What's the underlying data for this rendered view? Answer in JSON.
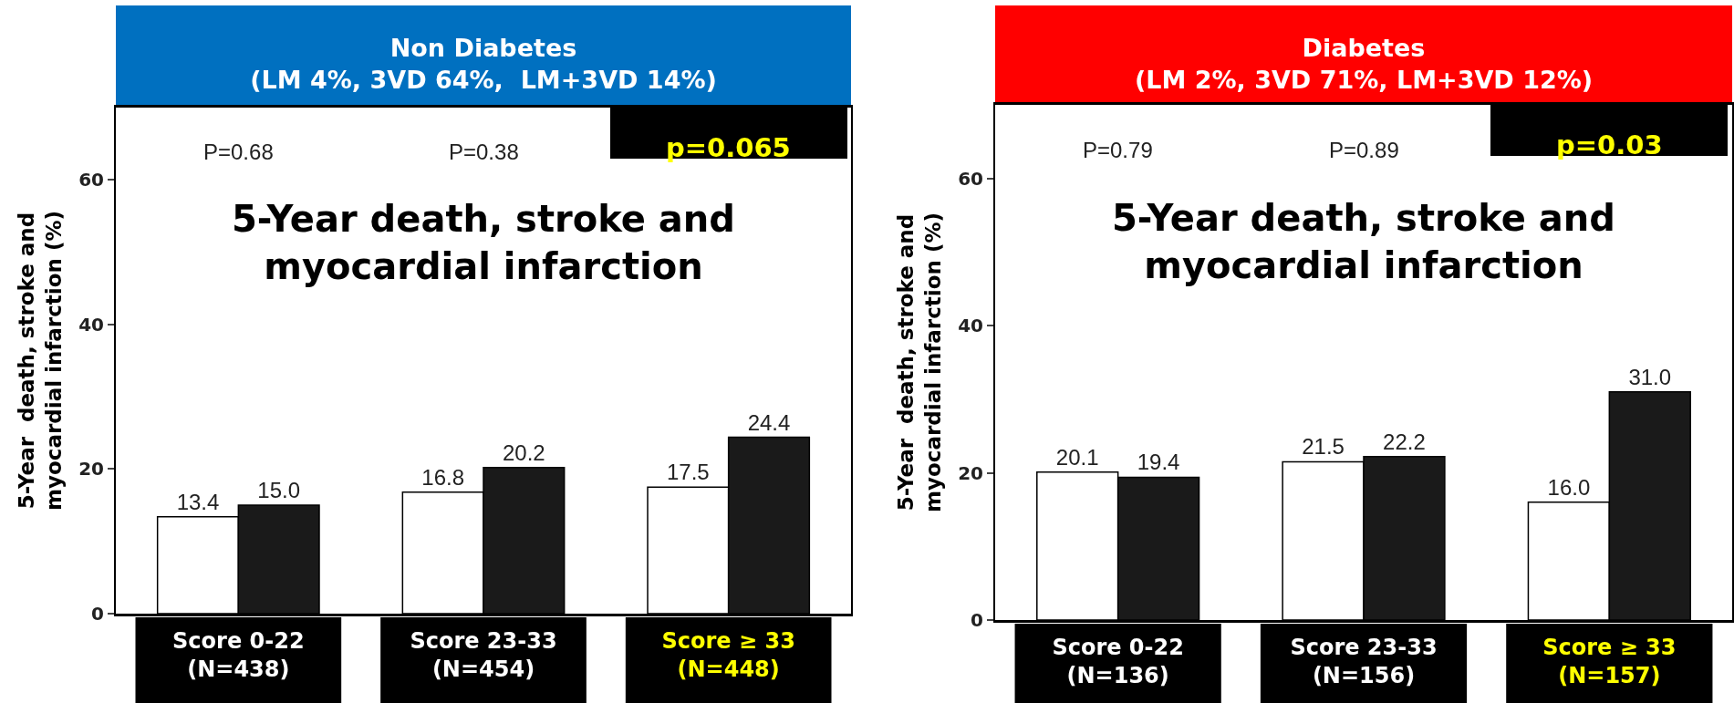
{
  "chart_data": [
    {
      "type": "bar",
      "title": "Non Diabetes\n(LM 4%, 3VD 64%,  LM+3VD 14%)",
      "subtitle": "5-Year death, stroke and\nmyocardial infarction",
      "ylabel": "5-Year  death, stroke and\nmyocardial infarction (%)",
      "categories": [
        "Score 0-22\n(N=438)",
        "Score 23-33\n(N=454)",
        "Score ≥ 33\n(N=448)"
      ],
      "series": [
        {
          "color": "#ffffff",
          "values": [
            13.4,
            16.8,
            17.5
          ],
          "value_labels": [
            "13.4",
            "16.8",
            "17.5"
          ]
        },
        {
          "color": "#1a1a1a",
          "values": [
            15.0,
            20.2,
            24.4
          ],
          "value_labels": [
            "15.0",
            "20.2",
            "24.4"
          ]
        }
      ],
      "annotations": [
        "P=0.68",
        "P=0.38",
        "p=0.065"
      ],
      "ylim": [
        0,
        70
      ],
      "yticks": [
        0,
        20,
        40,
        60
      ],
      "grid": false
    },
    {
      "type": "bar",
      "title": "Diabetes\n(LM 2%, 3VD 71%, LM+3VD 12%)",
      "subtitle": "5-Year death, stroke and\nmyocardial infarction",
      "ylabel": "5-Year  death, stroke and\nmyocardial infarction (%)",
      "categories": [
        "Score 0-22\n(N=136)",
        "Score 23-33\n(N=156)",
        "Score ≥ 33\n(N=157)"
      ],
      "series": [
        {
          "color": "#ffffff",
          "values": [
            20.1,
            21.5,
            16.0
          ],
          "value_labels": [
            "20.1",
            "21.5",
            "16.0"
          ]
        },
        {
          "color": "#1a1a1a",
          "values": [
            19.4,
            22.2,
            31.0
          ],
          "value_labels": [
            "19.4",
            "22.2",
            "31.0"
          ]
        }
      ],
      "annotations": [
        "P=0.79",
        "P=0.89",
        "p=0.03"
      ],
      "ylim": [
        0,
        70
      ],
      "yticks": [
        0,
        20,
        40,
        60
      ],
      "grid": false
    }
  ]
}
